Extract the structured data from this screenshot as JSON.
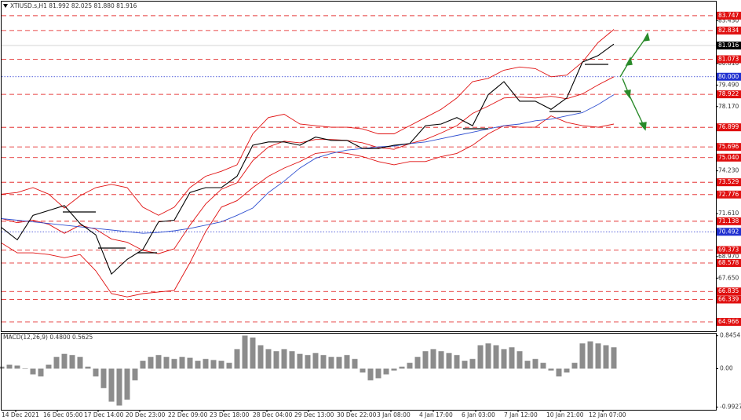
{
  "chart_data": [
    {
      "type": "line",
      "title": "XTIUSD.s,H1  81.992 82.025 81.880 81.916",
      "xlim": [
        0,
        45.5
      ],
      "ylim": [
        64.39,
        84.61
      ],
      "yticks": [
        {
          "value": 83.43,
          "label": "83.430"
        },
        {
          "value": 80.81,
          "label": "80.810"
        },
        {
          "value": 79.49,
          "label": "79.490"
        },
        {
          "value": 78.17,
          "label": "78.170"
        },
        {
          "value": 74.23,
          "label": "74.230"
        },
        {
          "value": 71.61,
          "label": "71.610"
        },
        {
          "value": 68.97,
          "label": "68.970"
        },
        {
          "value": 67.65,
          "label": "67.650"
        }
      ],
      "levels": [
        {
          "value": 83.747,
          "label": "83.747",
          "color": "#e01010"
        },
        {
          "value": 82.834,
          "label": "82.834",
          "color": "#e01010"
        },
        {
          "value": 81.073,
          "label": "81.073",
          "color": "#e01010"
        },
        {
          "value": 80.0,
          "label": "80.000",
          "color": "#2030d0"
        },
        {
          "value": 78.922,
          "label": "78.922",
          "color": "#e01010"
        },
        {
          "value": 76.899,
          "label": "76.899",
          "color": "#e01010"
        },
        {
          "value": 75.696,
          "label": "75.696",
          "color": "#e01010"
        },
        {
          "value": 75.04,
          "label": "75.040",
          "color": "#e01010"
        },
        {
          "value": 73.529,
          "label": "73.529",
          "color": "#e01010"
        },
        {
          "value": 72.776,
          "label": "72.776",
          "color": "#e01010"
        },
        {
          "value": 71.138,
          "label": "71.138",
          "color": "#e01010"
        },
        {
          "value": 70.492,
          "label": "70.492",
          "color": "#2030d0"
        },
        {
          "value": 69.373,
          "label": "69.373",
          "color": "#e01010"
        },
        {
          "value": 68.578,
          "label": "68.578",
          "color": "#e01010"
        },
        {
          "value": 66.835,
          "label": "66.835",
          "color": "#e01010"
        },
        {
          "value": 66.339,
          "label": "66.339",
          "color": "#e01010"
        },
        {
          "value": 64.966,
          "label": "64.966",
          "color": "#e01010"
        }
      ],
      "current_price": {
        "value": 81.916,
        "label": "81.916",
        "color": "#000000"
      },
      "series": [
        {
          "color": "#e01010",
          "values": [
            72.8,
            72.9,
            73.2,
            72.8,
            71.95,
            72.7,
            73.2,
            73.4,
            73.2,
            72.0,
            71.5,
            72.0,
            73.2,
            73.9,
            74.2,
            74.6,
            76.5,
            77.5,
            77.7,
            77.1,
            77.0,
            76.9,
            76.9,
            76.8,
            76.5,
            76.5,
            77.0,
            77.5,
            78.0,
            78.7,
            79.7,
            79.9,
            80.4,
            80.6,
            80.5,
            80.0,
            80.1,
            80.9,
            82.1,
            82.9
          ]
        },
        {
          "color": "#e01010",
          "values": [
            71.3,
            71.05,
            71.2,
            70.95,
            70.4,
            70.9,
            70.65,
            70.05,
            69.85,
            69.35,
            69.15,
            69.45,
            70.9,
            72.2,
            73.1,
            73.5,
            74.85,
            75.7,
            76.05,
            75.95,
            76.15,
            76.15,
            76.1,
            75.95,
            75.65,
            75.55,
            75.9,
            76.15,
            76.55,
            77.0,
            77.75,
            78.2,
            78.7,
            78.75,
            78.7,
            78.8,
            78.65,
            78.95,
            79.5,
            80.0
          ]
        },
        {
          "color": "#e01010",
          "values": [
            69.8,
            69.2,
            69.2,
            69.1,
            68.9,
            69.1,
            68.1,
            66.7,
            66.5,
            66.7,
            66.8,
            66.9,
            68.6,
            70.5,
            72.0,
            72.4,
            73.2,
            73.9,
            74.4,
            74.8,
            75.3,
            75.4,
            75.3,
            75.1,
            74.8,
            74.6,
            74.8,
            74.8,
            75.1,
            75.3,
            75.8,
            76.5,
            77.0,
            76.9,
            76.9,
            77.6,
            77.2,
            77.0,
            76.9,
            77.1
          ]
        },
        {
          "color": "#3050d0",
          "values": [
            71.3,
            71.2,
            71.1,
            71.0,
            70.9,
            70.8,
            70.7,
            70.6,
            70.5,
            70.4,
            70.45,
            70.55,
            70.7,
            70.9,
            71.1,
            71.5,
            71.95,
            72.9,
            73.6,
            74.4,
            75.0,
            75.3,
            75.5,
            75.6,
            75.7,
            75.75,
            75.9,
            76.0,
            76.2,
            76.4,
            76.6,
            76.8,
            77.0,
            77.1,
            77.3,
            77.4,
            77.6,
            77.8,
            78.3,
            78.9
          ]
        },
        {
          "color": "#000000",
          "values": [
            70.75,
            70.0,
            71.5,
            71.8,
            72.1,
            71.0,
            70.3,
            67.9,
            68.8,
            69.4,
            71.1,
            71.2,
            72.9,
            73.2,
            73.2,
            73.9,
            75.8,
            76.0,
            76.0,
            75.8,
            76.3,
            76.1,
            76.1,
            75.6,
            75.6,
            75.8,
            75.9,
            77.0,
            77.1,
            77.5,
            77.0,
            78.9,
            79.7,
            78.5,
            78.5,
            78.0,
            78.7,
            80.9,
            81.3,
            82.0
          ]
        }
      ]
    },
    {
      "type": "bar",
      "title": "MACD(12,26,9) 0.4800 0.5625",
      "color": "#8c8c8c",
      "xlim": [
        0,
        91
      ],
      "ylim": [
        -1.06,
        0.92
      ],
      "yticks": [
        0.8454,
        {
          "value": 0,
          "label": "0.00"
        },
        -0.9927
      ],
      "xticks": [
        {
          "value": 1.8,
          "label": "14 Dec 2021"
        },
        {
          "value": 7.1,
          "label": "16 Dec 05:00"
        },
        {
          "value": 12.3,
          "label": "17 Dec 14:00"
        },
        {
          "value": 17.6,
          "label": "20 Dec 23:00"
        },
        {
          "value": 23,
          "label": "22 Dec 09:00"
        },
        {
          "value": 28.3,
          "label": "23 Dec 18:00"
        },
        {
          "value": 33.8,
          "label": "28 Dec 04:00"
        },
        {
          "value": 39.1,
          "label": "29 Dec 13:00"
        },
        {
          "value": 44.5,
          "label": "30 Dec 22:00"
        },
        {
          "value": 49.6,
          "label": "3 Jan 08:00"
        },
        {
          "value": 55,
          "label": "4 Jan 17:00"
        },
        {
          "value": 60.4,
          "label": "6 Jan 03:00"
        },
        {
          "value": 65.8,
          "label": "7 Jan 12:00"
        },
        {
          "value": 71.2,
          "label": "10 Jan 21:00"
        },
        {
          "value": 76.6,
          "label": "12 Jan 07:00"
        }
      ],
      "values": [
        0.05,
        0.1,
        0.08,
        0.0,
        -0.15,
        -0.2,
        0.1,
        0.3,
        0.38,
        0.35,
        0.3,
        0.05,
        -0.2,
        -0.5,
        -0.85,
        -0.95,
        -0.8,
        -0.3,
        0.2,
        0.3,
        0.35,
        0.3,
        0.25,
        0.3,
        0.28,
        0.2,
        0.25,
        0.22,
        0.2,
        0.15,
        0.5,
        0.85,
        0.8,
        0.6,
        0.5,
        0.45,
        0.5,
        0.45,
        0.38,
        0.35,
        0.4,
        0.35,
        0.3,
        0.3,
        0.35,
        0.25,
        -0.1,
        -0.3,
        -0.25,
        -0.15,
        -0.05,
        0.05,
        0.15,
        0.3,
        0.45,
        0.5,
        0.45,
        0.4,
        0.35,
        0.2,
        0.25,
        0.6,
        0.65,
        0.6,
        0.5,
        0.55,
        0.45,
        0.2,
        0.25,
        0.15,
        -0.05,
        -0.2,
        -0.1,
        0.15,
        0.65,
        0.7,
        0.65,
        0.6,
        0.55
      ]
    }
  ]
}
